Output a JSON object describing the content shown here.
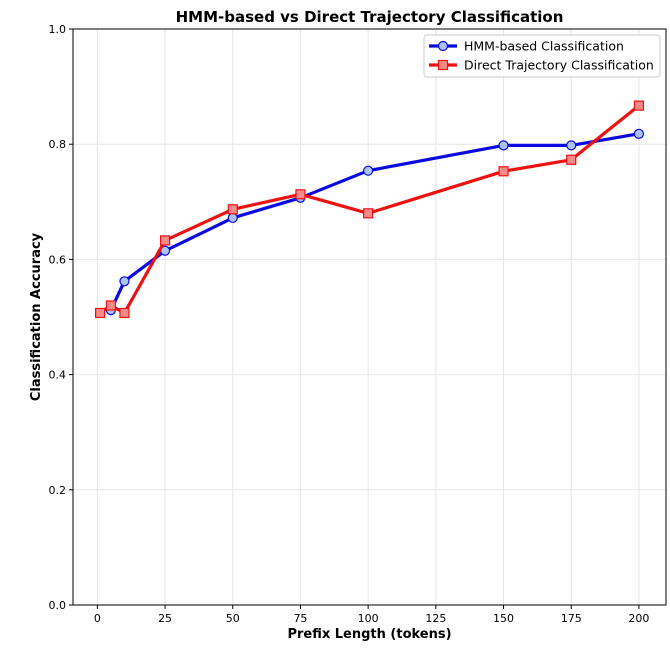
{
  "chart_data": {
    "type": "line",
    "title": "HMM-based vs Direct Trajectory Classification",
    "xlabel": "Prefix Length (tokens)",
    "ylabel": "Classification Accuracy",
    "xlim": [
      -9,
      210
    ],
    "ylim": [
      0.0,
      1.0
    ],
    "xticks": [
      "0",
      "25",
      "50",
      "75",
      "100",
      "125",
      "150",
      "175",
      "200"
    ],
    "yticks": [
      "0.0",
      "0.2",
      "0.4",
      "0.6",
      "0.8",
      "1.0"
    ],
    "grid": true,
    "legend_position": "top-right",
    "series": [
      {
        "name": "HMM-based Classification",
        "color": "#0a0ae0",
        "marker": "circle",
        "marker_fill": "#a9c4f5",
        "x": [
          5,
          10,
          25,
          50,
          75,
          100,
          150,
          175,
          200
        ],
        "y": [
          0.512,
          0.562,
          0.615,
          0.672,
          0.707,
          0.754,
          0.798,
          0.798,
          0.818
        ]
      },
      {
        "name": "Direct Trajectory Classification",
        "color": "#ee1111",
        "marker": "square",
        "marker_fill": "#f58a8a",
        "x": [
          1,
          5,
          10,
          25,
          50,
          75,
          100,
          150,
          175,
          200
        ],
        "y": [
          0.507,
          0.52,
          0.507,
          0.633,
          0.687,
          0.713,
          0.68,
          0.753,
          0.773,
          0.867
        ]
      }
    ]
  }
}
